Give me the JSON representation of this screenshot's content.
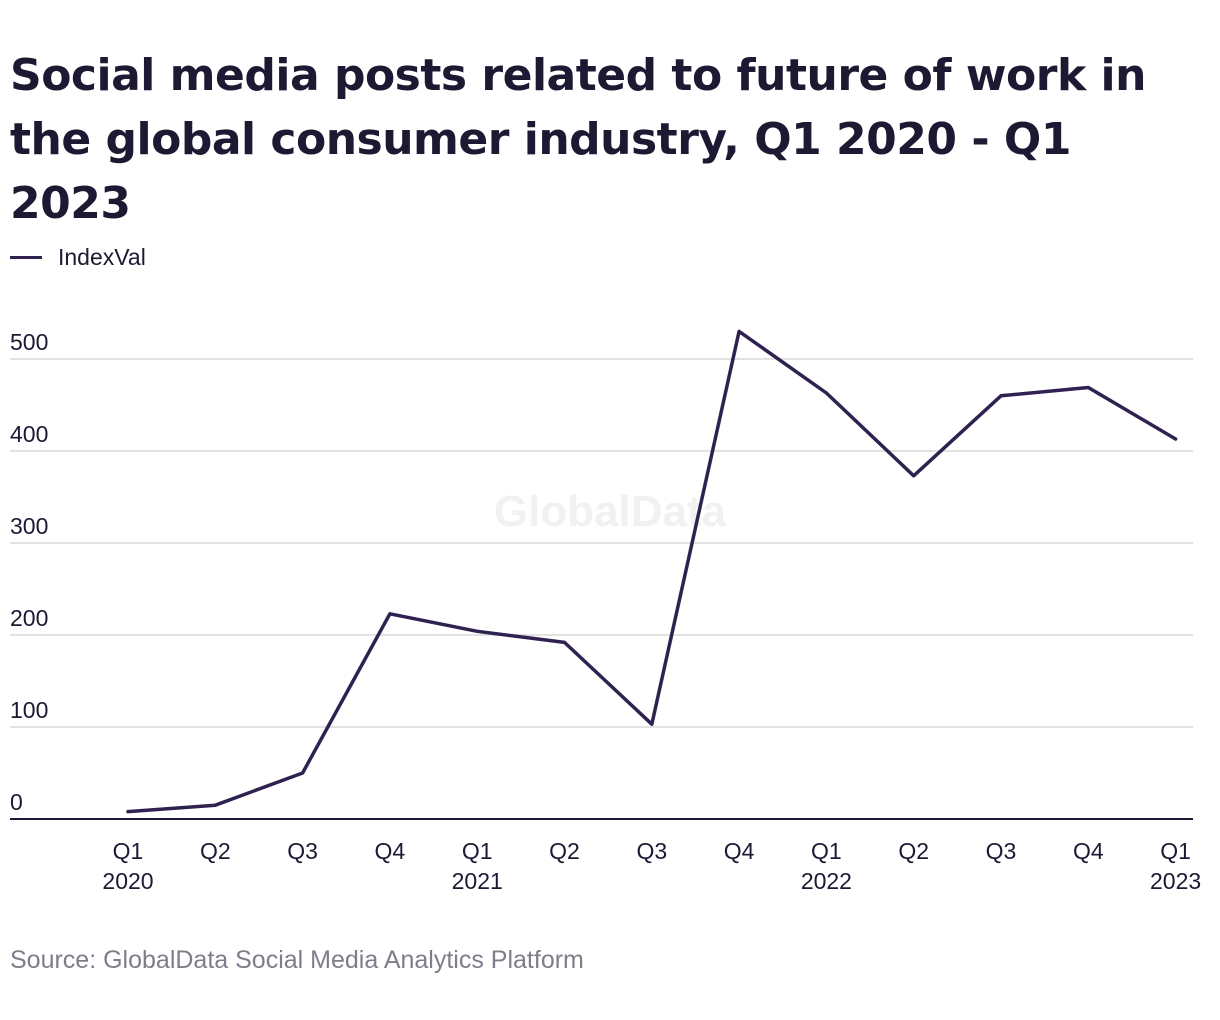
{
  "title": "Social media posts related to future of work in the global consumer industry, Q1 2020 - Q1 2023",
  "source": "Source: GlobalData Social Media Analytics Platform",
  "watermark": "GlobalData",
  "colors": {
    "line": "#2f2150",
    "grid": "#d9d9d9",
    "axis": "#1c1a33",
    "text": "#1c1a33",
    "source_text": "#7f7d8a"
  },
  "chart_data": {
    "type": "line",
    "title": "Social media posts related to future of work in the global consumer industry, Q1 2020 - Q1 2023",
    "xlabel": "",
    "ylabel": "",
    "categories": [
      {
        "quarter": "Q1",
        "year": "2020"
      },
      {
        "quarter": "Q2",
        "year": ""
      },
      {
        "quarter": "Q3",
        "year": ""
      },
      {
        "quarter": "Q4",
        "year": ""
      },
      {
        "quarter": "Q1",
        "year": "2021"
      },
      {
        "quarter": "Q2",
        "year": ""
      },
      {
        "quarter": "Q3",
        "year": ""
      },
      {
        "quarter": "Q4",
        "year": ""
      },
      {
        "quarter": "Q1",
        "year": "2022"
      },
      {
        "quarter": "Q2",
        "year": ""
      },
      {
        "quarter": "Q3",
        "year": ""
      },
      {
        "quarter": "Q4",
        "year": ""
      },
      {
        "quarter": "Q1",
        "year": "2023"
      }
    ],
    "series": [
      {
        "name": "IndexVal",
        "values": [
          8,
          15,
          50,
          223,
          204,
          192,
          103,
          530,
          463,
          373,
          460,
          469,
          413
        ]
      }
    ],
    "yticks": [
      0,
      100,
      200,
      300,
      400,
      500
    ],
    "ylim": [
      0,
      560
    ],
    "grid": true,
    "legend": "top-left"
  }
}
